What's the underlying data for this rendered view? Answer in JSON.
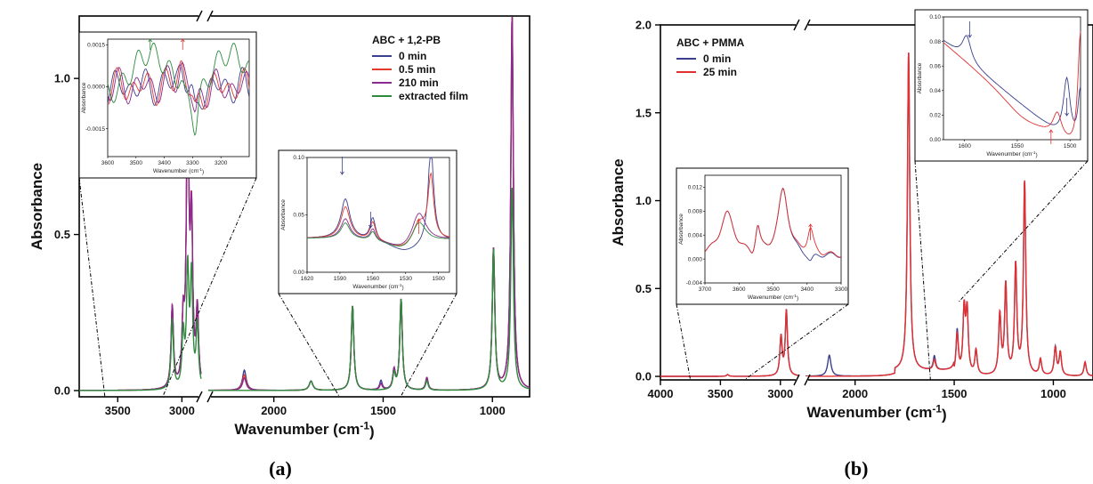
{
  "panel_labels": [
    "(a)",
    "(b)"
  ],
  "chart_data": [
    {
      "id": "a",
      "type": "line",
      "title": "",
      "xlabel": "Wavenumber (cm⁻¹)",
      "ylabel": "Absorbance",
      "x_axis_break": true,
      "x_segments": [
        [
          3800,
          2850
        ],
        [
          2300,
          830
        ]
      ],
      "x_reversed": true,
      "xlim": [
        3800,
        830
      ],
      "ylim": [
        -0.02,
        1.2
      ],
      "xticks": [
        3500,
        3000,
        2500,
        2000,
        1500,
        1000
      ],
      "yticks": [
        0.0,
        0.5,
        1.0
      ],
      "ytick_labels": [
        "0.0",
        "0.5",
        "1.0"
      ],
      "legend_title": "ABC + 1,2-PB",
      "legend_position": "top-right",
      "series": [
        {
          "name": "0 min",
          "color": "#3a3f8f"
        },
        {
          "name": "0.5 min",
          "color": "#e53a2e"
        },
        {
          "name": "210 min",
          "color": "#8b2a8e"
        },
        {
          "name": "extracted film",
          "color": "#2e8b3e"
        }
      ],
      "peaks": [
        {
          "x": 3075,
          "y": [
            0.26,
            0.26,
            0.26,
            0.22
          ]
        },
        {
          "x": 2990,
          "y": [
            0.19,
            0.19,
            0.19,
            0.17
          ]
        },
        {
          "x": 2955,
          "y": [
            1.0,
            1.0,
            0.98,
            0.37
          ]
        },
        {
          "x": 2925,
          "y": [
            0.5,
            0.5,
            0.5,
            0.35
          ]
        },
        {
          "x": 2880,
          "y": [
            0.24,
            0.24,
            0.24,
            0.2
          ]
        },
        {
          "x": 2135,
          "y": [
            0.065,
            0.05,
            0.04,
            0.0
          ]
        },
        {
          "x": 1830,
          "y": [
            0.03,
            0.03,
            0.03,
            0.03
          ]
        },
        {
          "x": 1640,
          "y": [
            0.27,
            0.27,
            0.27,
            0.27
          ]
        },
        {
          "x": 1510,
          "y": [
            0.03,
            0.02,
            0.02,
            0.0
          ]
        },
        {
          "x": 1450,
          "y": [
            0.06,
            0.06,
            0.06,
            0.05
          ]
        },
        {
          "x": 1418,
          "y": [
            0.29,
            0.29,
            0.29,
            0.29
          ]
        },
        {
          "x": 1300,
          "y": [
            0.04,
            0.04,
            0.04,
            0.03
          ]
        },
        {
          "x": 995,
          "y": [
            0.45,
            0.45,
            0.45,
            0.45
          ]
        },
        {
          "x": 910,
          "y": [
            1.2,
            1.2,
            1.2,
            0.65
          ]
        }
      ],
      "insets": [
        {
          "xlim": [
            3600,
            3100
          ],
          "xticks": [
            3600,
            3500,
            3400,
            3300,
            3200
          ],
          "ylim": [
            -0.0025,
            0.0017
          ],
          "yticks": [
            0.0015,
            0.0,
            -0.0015
          ],
          "ytick_labels": [
            "0.0015",
            "0.0000",
            "-0.0015"
          ],
          "xlabel": "Wavenumber (cm⁻¹)",
          "ylabel": "Absorbance"
        },
        {
          "xlim": [
            1620,
            1490
          ],
          "xticks": [
            1620,
            1590,
            1560,
            1530,
            1500
          ],
          "ylim": [
            0.0,
            0.1
          ],
          "yticks": [
            0.0,
            0.05,
            0.1
          ],
          "ytick_labels": [
            "0.00",
            "0.05",
            "0.10"
          ],
          "xlabel": "Wavenumber (cm⁻¹)",
          "ylabel": "Absorbance"
        }
      ]
    },
    {
      "id": "b",
      "type": "line",
      "title": "",
      "xlabel": "Wavenumber (cm⁻¹)",
      "ylabel": "Absorbance",
      "x_axis_break": true,
      "x_segments": [
        [
          4000,
          2850
        ],
        [
          2250,
          800
        ]
      ],
      "x_reversed": true,
      "xlim": [
        4000,
        800
      ],
      "ylim": [
        -0.02,
        2.0
      ],
      "xticks": [
        4000,
        3500,
        3000,
        2000,
        1500,
        1000
      ],
      "yticks": [
        0.0,
        0.5,
        1.0,
        1.5,
        2.0
      ],
      "ytick_labels": [
        "0.0",
        "0.5",
        "1.0",
        "1.5",
        "2.0"
      ],
      "legend_title": "ABC + PMMA",
      "legend_position": "top-left",
      "series": [
        {
          "name": "0 min",
          "color": "#3a3f8f"
        },
        {
          "name": "25 min",
          "color": "#e03030"
        }
      ],
      "peaks": [
        {
          "x": 3440,
          "y": [
            0.01,
            0.01
          ]
        },
        {
          "x": 2995,
          "y": [
            0.22,
            0.22
          ]
        },
        {
          "x": 2950,
          "y": [
            0.37,
            0.37
          ]
        },
        {
          "x": 2130,
          "y": [
            0.12,
            0.0
          ]
        },
        {
          "x": 1730,
          "y": [
            1.82,
            1.82
          ]
        },
        {
          "x": 1600,
          "y": [
            0.08,
            0.06
          ]
        },
        {
          "x": 1485,
          "y": [
            0.25,
            0.23
          ]
        },
        {
          "x": 1450,
          "y": [
            0.36,
            0.36
          ]
        },
        {
          "x": 1435,
          "y": [
            0.35,
            0.35
          ]
        },
        {
          "x": 1390,
          "y": [
            0.14,
            0.14
          ]
        },
        {
          "x": 1270,
          "y": [
            0.34,
            0.34
          ]
        },
        {
          "x": 1240,
          "y": [
            0.51,
            0.51
          ]
        },
        {
          "x": 1190,
          "y": [
            0.62,
            0.62
          ]
        },
        {
          "x": 1145,
          "y": [
            1.1,
            1.1
          ]
        },
        {
          "x": 1065,
          "y": [
            0.09,
            0.09
          ]
        },
        {
          "x": 990,
          "y": [
            0.16,
            0.16
          ]
        },
        {
          "x": 965,
          "y": [
            0.13,
            0.13
          ]
        },
        {
          "x": 840,
          "y": [
            0.08,
            0.08
          ]
        }
      ],
      "insets": [
        {
          "xlim": [
            3700,
            3300
          ],
          "xticks": [
            3700,
            3600,
            3500,
            3400,
            3300
          ],
          "ylim": [
            -0.004,
            0.014
          ],
          "yticks": [
            0.012,
            0.008,
            0.004,
            0.0,
            -0.004
          ],
          "ytick_labels": [
            "0.012",
            "0.008",
            "0.004",
            "0.000",
            "-0.004"
          ],
          "xlabel": "Wavenumber (cm⁻¹)",
          "ylabel": "Absorbance"
        },
        {
          "xlim": [
            1620,
            1490
          ],
          "xticks": [
            1600,
            1550,
            1500
          ],
          "ylim": [
            0.0,
            0.1
          ],
          "yticks": [
            0.0,
            0.02,
            0.04,
            0.06,
            0.08,
            0.1
          ],
          "ytick_labels": [
            "0.00",
            "0.02",
            "0.04",
            "0.06",
            "0.08",
            "0.10"
          ],
          "xlabel": "Wavenumber (cm⁻¹)",
          "ylabel": "Absorbance"
        }
      ]
    }
  ]
}
